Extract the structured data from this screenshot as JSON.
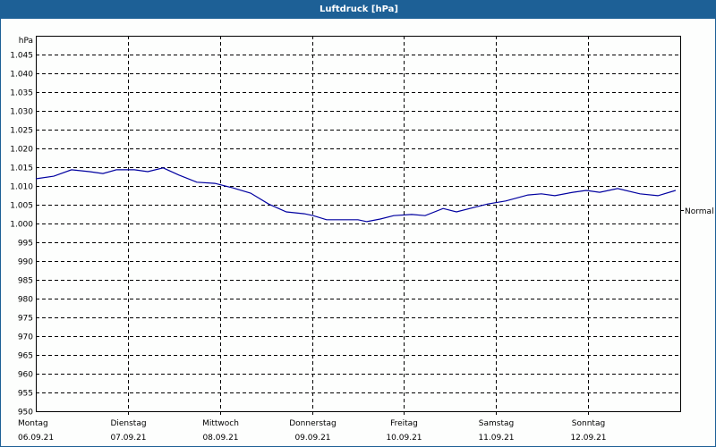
{
  "window": {
    "title": "Luftdruck [hPa]"
  },
  "chart_data": {
    "type": "line",
    "title": "Luftdruck [hPa]",
    "ylabel": "hPa",
    "xlabel": "",
    "ylim": [
      950,
      1050
    ],
    "yticks": [
      950,
      955,
      960,
      965,
      970,
      975,
      980,
      985,
      990,
      995,
      1000,
      1005,
      1010,
      1015,
      1020,
      1025,
      1030,
      1035,
      1040,
      1045
    ],
    "ytick_labels": [
      "950",
      "955",
      "960",
      "965",
      "970",
      "975",
      "980",
      "985",
      "990",
      "995",
      "1.000",
      "1.005",
      "1.010",
      "1.015",
      "1.020",
      "1.025",
      "1.030",
      "1.035",
      "1.040",
      "1.045"
    ],
    "xlim_hours": [
      0,
      168
    ],
    "categories": [
      {
        "day": "Montag",
        "date": "06.09.21"
      },
      {
        "day": "Dienstag",
        "date": "07.09.21"
      },
      {
        "day": "Mittwoch",
        "date": "08.09.21"
      },
      {
        "day": "Donnerstag",
        "date": "09.09.21"
      },
      {
        "day": "Freitag",
        "date": "10.09.21"
      },
      {
        "day": "Samstag",
        "date": "11.09.21"
      },
      {
        "day": "Sonntag",
        "date": "12.09.21"
      }
    ],
    "reference_line": {
      "label": "Normal",
      "value": 1005
    },
    "grid": true,
    "series": [
      {
        "name": "Luftdruck",
        "color": "#0000a0",
        "x_hours": [
          0,
          4.7,
          9.3,
          14,
          17.5,
          21,
          25.7,
          29.2,
          33.2,
          37.3,
          42,
          46.7,
          51.3,
          56,
          60.7,
          65.3,
          70,
          72.3,
          75.8,
          80.5,
          84,
          86.3,
          89.8,
          93.3,
          98,
          101.5,
          106.2,
          109.7,
          114.3,
          117.8,
          122.5,
          128.3,
          131.8,
          135.3,
          140,
          143.5,
          147,
          151.7,
          157.5,
          162.2,
          166.8
        ],
        "values": [
          1011.9,
          1012.6,
          1014.3,
          1013.8,
          1013.3,
          1014.3,
          1014.3,
          1013.8,
          1014.8,
          1012.9,
          1011.0,
          1010.7,
          1009.5,
          1008.1,
          1005.2,
          1003.1,
          1002.6,
          1002.1,
          1001.0,
          1001.0,
          1001.0,
          1000.5,
          1001.2,
          1002.1,
          1002.4,
          1002.1,
          1004.0,
          1003.1,
          1004.3,
          1005.2,
          1006.0,
          1007.6,
          1007.9,
          1007.4,
          1008.3,
          1008.8,
          1008.3,
          1009.3,
          1007.9,
          1007.4,
          1008.8
        ]
      }
    ]
  },
  "colors": {
    "titlebar": "#1d6096",
    "line": "#0000a0",
    "grid": "#000000"
  }
}
